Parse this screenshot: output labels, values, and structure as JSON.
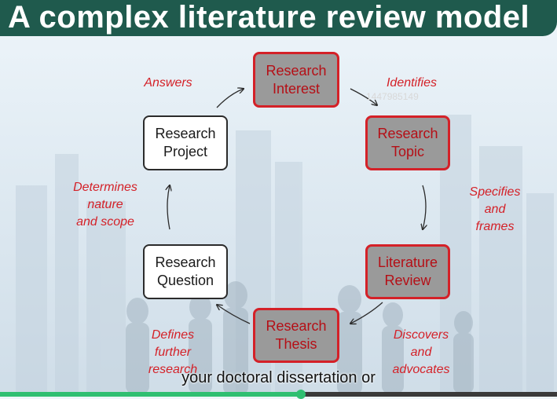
{
  "header": {
    "title": "A complex literature review model"
  },
  "nodes": {
    "interest": "Research\nInterest",
    "topic": "Research\nTopic",
    "review": "Literature\nReview",
    "thesis": "Research\nThesis",
    "question": "Research\nQuestion",
    "project": "Research\nProject"
  },
  "edges": {
    "identifies": "Identifies",
    "specifies": "Specifies\nand\nframes",
    "discovers": "Discovers\nand\nadvocates",
    "defines": "Defines\nfurther\nresearch",
    "determines": "Determines\nnature\nand scope",
    "answers": "Answers"
  },
  "watermark": "1447985149",
  "caption": "your doctoral dissertation or",
  "player": {
    "progress": 0.54
  },
  "colors": {
    "header": "#1f5a4d",
    "accent": "#d42128",
    "shaded_box": "#9a9a9a",
    "progress": "#2fbf71"
  }
}
